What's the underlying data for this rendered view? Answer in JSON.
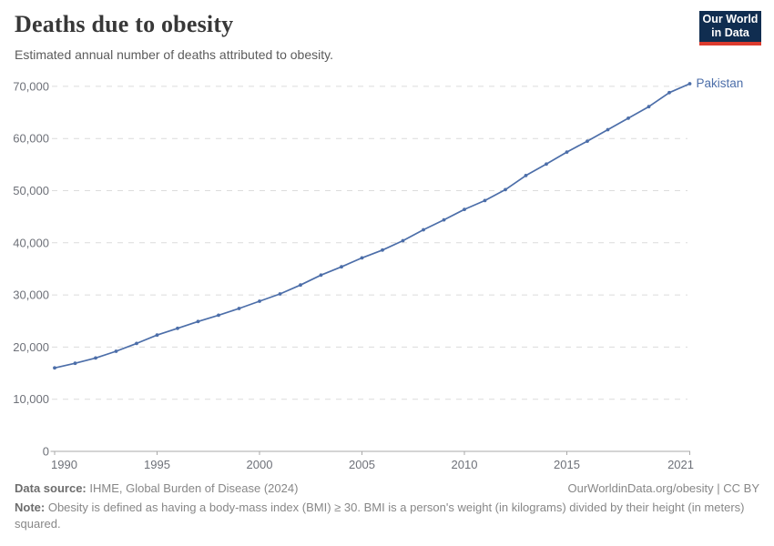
{
  "header": {
    "title": "Deaths due to obesity",
    "subtitle": "Estimated annual number of deaths attributed to obesity.",
    "logo": {
      "line1": "Our World",
      "line2": "in Data",
      "bg_color": "#102d50",
      "stripe_color": "#dc3b2e"
    }
  },
  "chart_data": {
    "type": "line",
    "title": "Deaths due to obesity",
    "entity_label": "Pakistan",
    "xlim": [
      1990,
      2021
    ],
    "ylim": [
      0,
      70000
    ],
    "x_ticks": [
      1990,
      1995,
      2000,
      2005,
      2010,
      2015,
      2021
    ],
    "y_ticks": [
      0,
      10000,
      20000,
      30000,
      40000,
      50000,
      60000,
      70000
    ],
    "grid": true,
    "legend_position": "end-of-line",
    "line_color": "#4c6ea9",
    "grid_color": "#dcdcdc",
    "axis_color": "#a9a9a9",
    "tick_label_color": "#6e7179",
    "x": [
      1990,
      1991,
      1992,
      1993,
      1994,
      1995,
      1996,
      1997,
      1998,
      1999,
      2000,
      2001,
      2002,
      2003,
      2004,
      2005,
      2006,
      2007,
      2008,
      2009,
      2010,
      2011,
      2012,
      2013,
      2014,
      2015,
      2016,
      2017,
      2018,
      2019,
      2020,
      2021
    ],
    "values": [
      16000,
      16900,
      17900,
      19200,
      20700,
      22300,
      23600,
      24900,
      26100,
      27400,
      28800,
      30200,
      31900,
      33800,
      35400,
      37100,
      38600,
      40400,
      42500,
      44400,
      46400,
      48100,
      50200,
      52900,
      55100,
      57400,
      59500,
      61700,
      63900,
      66100,
      68800,
      70500
    ]
  },
  "footer": {
    "source_label": "Data source:",
    "source_text": " IHME, Global Burden of Disease (2024)",
    "link": "OurWorldinData.org/obesity | CC BY",
    "note_label": "Note:",
    "note_text": " Obesity is defined as having a body-mass index (BMI) ≥ 30. BMI is a person's weight (in kilograms) divided by their height (in meters) squared."
  }
}
